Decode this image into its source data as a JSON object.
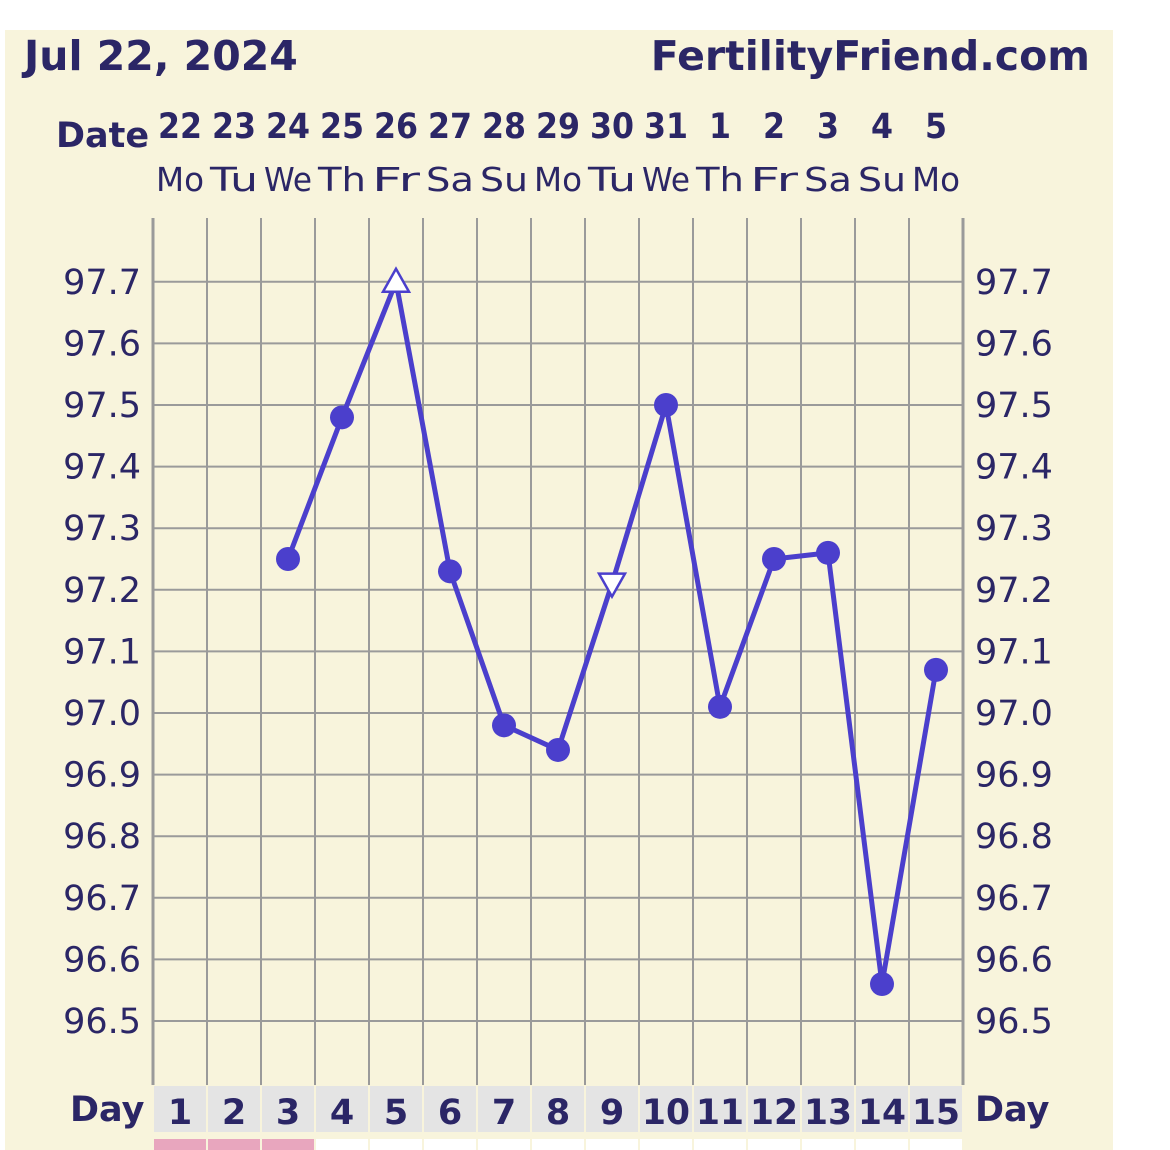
{
  "header": {
    "date": "Jul 22, 2024",
    "site": "FertilityFriend.com"
  },
  "labels": {
    "date_row": "Date",
    "day_row": "Day"
  },
  "colors": {
    "background": "#f8f4dc",
    "line": "#4b3fcc",
    "grid": "#9a9a9a",
    "text": "#2b2666",
    "day_cell": "#e4e4e4",
    "period_marker": "#e8a6be"
  },
  "chart_data": {
    "type": "line",
    "title": "",
    "xlabel": "Day",
    "ylabel": "",
    "ylim": [
      96.4,
      97.8
    ],
    "y_ticks": [
      "97.7",
      "97.6",
      "97.5",
      "97.4",
      "97.3",
      "97.2",
      "97.1",
      "97.0",
      "96.9",
      "96.8",
      "96.7",
      "96.6",
      "96.5"
    ],
    "dates": [
      "22",
      "23",
      "24",
      "25",
      "26",
      "27",
      "28",
      "29",
      "30",
      "31",
      "1",
      "2",
      "3",
      "4",
      "5"
    ],
    "weekdays": [
      "Mo",
      "Tu",
      "We",
      "Th",
      "Fr",
      "Sa",
      "Su",
      "Mo",
      "Tu",
      "We",
      "Th",
      "Fr",
      "Sa",
      "Su",
      "Mo"
    ],
    "cycle_days": [
      "1",
      "2",
      "3",
      "4",
      "5",
      "6",
      "7",
      "8",
      "9",
      "10",
      "11",
      "12",
      "13",
      "14",
      "15"
    ],
    "period_days": [
      1,
      2,
      3
    ],
    "series": [
      {
        "values": [
          null,
          null,
          97.25,
          97.48,
          97.7,
          97.23,
          96.98,
          96.94,
          97.21,
          97.5,
          97.01,
          97.25,
          97.26,
          96.56,
          97.07
        ],
        "markers": [
          "none",
          "none",
          "dot",
          "dot",
          "triangle-up",
          "dot",
          "dot",
          "dot",
          "triangle-down",
          "dot",
          "dot",
          "dot",
          "dot",
          "dot",
          "dot"
        ]
      }
    ],
    "grid": true
  }
}
